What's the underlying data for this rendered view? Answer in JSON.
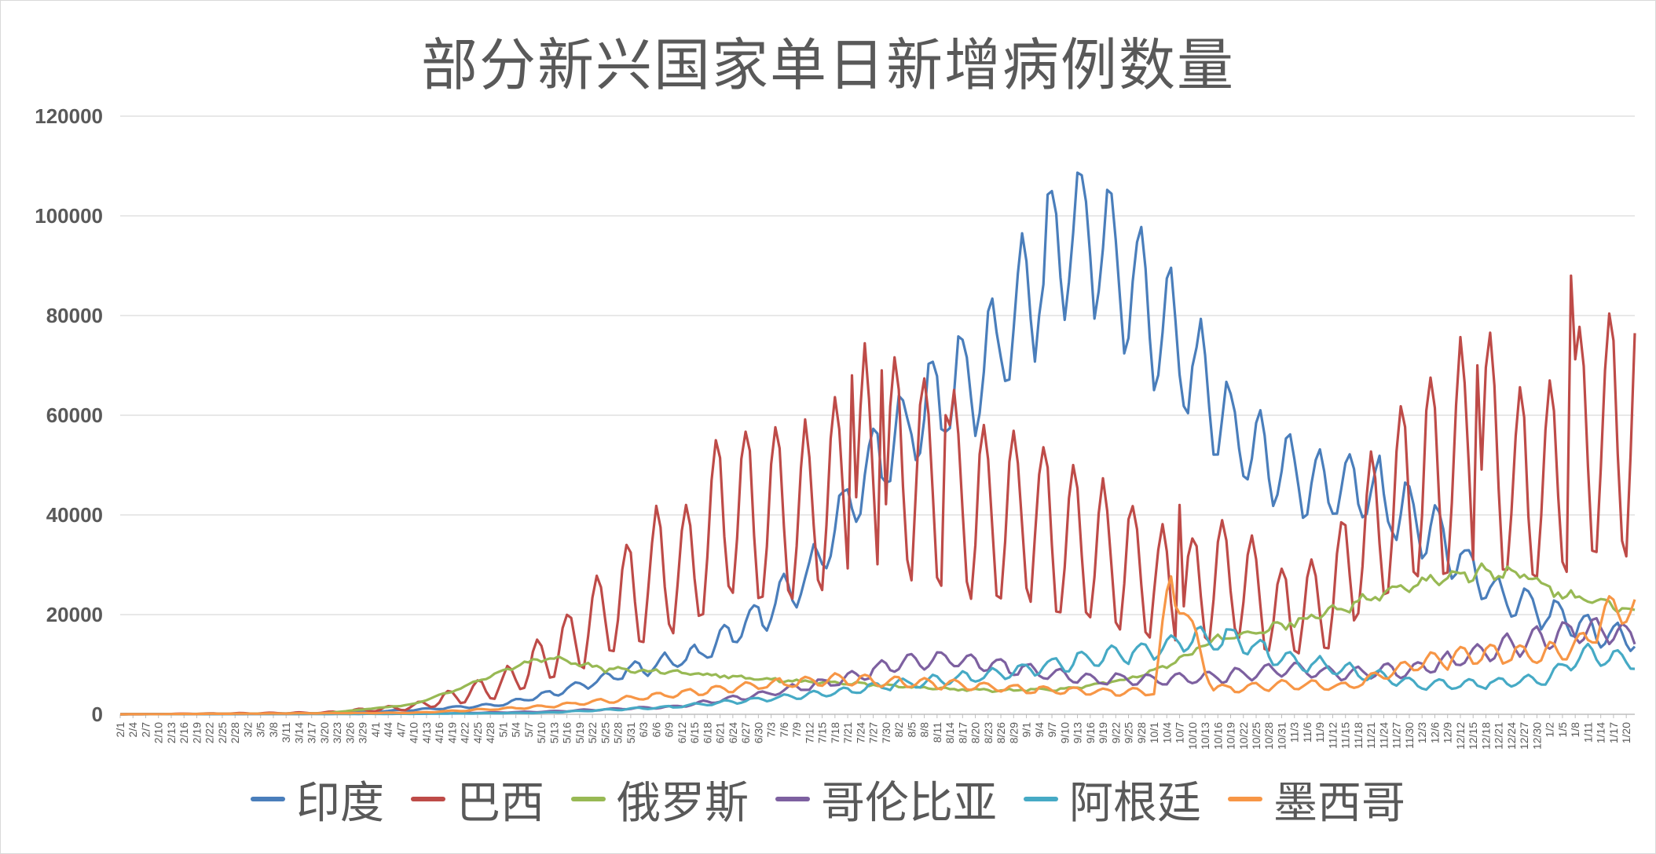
{
  "chart_data": {
    "type": "line",
    "title": "部分新兴国家单日新增病例数量",
    "xlabel": "",
    "ylabel": "",
    "ylim": [
      0,
      120000
    ],
    "y_ticks": [
      0,
      20000,
      40000,
      60000,
      80000,
      100000,
      120000
    ],
    "x_start": "2/1",
    "x_end": "1/22",
    "x_tick_labels": [
      "2/1",
      "2/4",
      "2/7",
      "2/10",
      "2/13",
      "2/16",
      "2/19",
      "2/22",
      "2/25",
      "2/28",
      "3/2",
      "3/5",
      "3/8",
      "3/11",
      "3/14",
      "3/17",
      "3/20",
      "3/23",
      "3/26",
      "3/29",
      "4/1",
      "4/4",
      "4/7",
      "4/10",
      "4/13",
      "4/16",
      "4/19",
      "4/22",
      "4/25",
      "4/28",
      "5/1",
      "5/4",
      "5/7",
      "5/10",
      "5/13",
      "5/16",
      "5/19",
      "5/22",
      "5/25",
      "5/28",
      "5/31",
      "6/3",
      "6/6",
      "6/9",
      "6/12",
      "6/15",
      "6/18",
      "6/21",
      "6/24",
      "6/27",
      "6/30",
      "7/3",
      "7/6",
      "7/9",
      "7/12",
      "7/15",
      "7/18",
      "7/21",
      "7/24",
      "7/27",
      "7/30",
      "8/2",
      "8/5",
      "8/8",
      "8/11",
      "8/14",
      "8/17",
      "8/20",
      "8/23",
      "8/26",
      "8/29",
      "9/1",
      "9/4",
      "9/7",
      "9/10",
      "9/13",
      "9/16",
      "9/19",
      "9/22",
      "9/25",
      "9/28",
      "10/1",
      "10/4",
      "10/7",
      "10/10",
      "10/13",
      "10/16",
      "10/19",
      "10/22",
      "10/25",
      "10/28",
      "10/31",
      "11/3",
      "11/6",
      "11/9",
      "11/12",
      "11/15",
      "11/18",
      "11/21",
      "11/24",
      "11/27",
      "11/30",
      "12/3",
      "12/6",
      "12/9",
      "12/12",
      "12/15",
      "12/18",
      "12/21",
      "12/24",
      "12/27",
      "12/30",
      "1/2",
      "1/5",
      "1/8",
      "1/11",
      "1/14",
      "1/17",
      "1/20"
    ],
    "grid": true,
    "legend_position": "bottom",
    "series": [
      {
        "name": "印度",
        "color": "#4a7ebb",
        "x": [
          "2/1",
          "3/20",
          "4/10",
          "5/1",
          "5/16",
          "6/1",
          "6/16",
          "7/1",
          "7/12",
          "7/26",
          "8/9",
          "8/23",
          "9/5",
          "9/11",
          "9/16",
          "9/26",
          "10/6",
          "10/21",
          "11/5",
          "11/20",
          "12/5",
          "12/20",
          "1/5",
          "1/15",
          "1/22"
        ],
        "values": [
          0,
          200,
          900,
          2000,
          5000,
          9000,
          12000,
          20000,
          28000,
          49000,
          62000,
          70000,
          89000,
          97000,
          96000,
          86000,
          74000,
          55000,
          47000,
          45000,
          37000,
          24000,
          19000,
          16000,
          15000
        ]
      },
      {
        "name": "巴西",
        "color": "#be4b48",
        "x": [
          "2/1",
          "3/20",
          "4/10",
          "5/1",
          "5/16",
          "5/25",
          "6/5",
          "6/15",
          "6/21",
          "7/1",
          "7/10",
          "7/20",
          "7/25",
          "8/1",
          "8/15",
          "8/20",
          "9/1",
          "9/10",
          "9/25",
          "10/5",
          "10/10",
          "10/20",
          "10/30",
          "11/10",
          "11/20",
          "11/30",
          "12/10",
          "12/18",
          "12/25",
          "1/2",
          "1/8",
          "1/15",
          "1/22"
        ],
        "values": [
          0,
          300,
          1500,
          6000,
          14000,
          20000,
          28000,
          30000,
          40000,
          40000,
          40000,
          45000,
          50000,
          50000,
          45000,
          40000,
          40000,
          35000,
          30000,
          25000,
          25000,
          28000,
          20000,
          22000,
          35000,
          45000,
          50000,
          55000,
          45000,
          45000,
          55000,
          55000,
          59000
        ],
        "peaks": {
          "6/20": 55000,
          "7/22": 68000,
          "7/29": 69000,
          "8/13": 60000,
          "10/7": 42000,
          "12/16": 70000,
          "1/7": 88000,
          "1/15": 69000
        }
      },
      {
        "name": "俄罗斯",
        "color": "#98b954",
        "x": [
          "2/1",
          "3/20",
          "4/10",
          "4/20",
          "5/5",
          "5/12",
          "5/25",
          "6/10",
          "6/25",
          "7/10",
          "7/25",
          "8/10",
          "8/25",
          "9/10",
          "9/25",
          "10/5",
          "10/15",
          "10/25",
          "11/5",
          "11/20",
          "12/1",
          "12/10",
          "12/24",
          "1/5",
          "1/15",
          "1/22"
        ],
        "values": [
          0,
          200,
          2000,
          5000,
          10000,
          11500,
          9000,
          8500,
          7500,
          6600,
          6000,
          5200,
          4800,
          5000,
          7000,
          10000,
          15000,
          16500,
          19000,
          23000,
          26000,
          28000,
          29000,
          24000,
          22000,
          21000
        ]
      },
      {
        "name": "哥伦比亚",
        "color": "#7d60a0",
        "x": [
          "2/1",
          "4/10",
          "5/10",
          "6/10",
          "7/1",
          "7/20",
          "8/1",
          "8/15",
          "9/1",
          "9/15",
          "10/1",
          "10/15",
          "11/1",
          "11/15",
          "12/1",
          "12/15",
          "12/24",
          "1/5",
          "1/15",
          "1/22"
        ],
        "values": [
          0,
          100,
          500,
          1500,
          4000,
          7000,
          10000,
          11000,
          9000,
          7000,
          7000,
          7500,
          9000,
          8000,
          9000,
          12000,
          14000,
          16000,
          17000,
          15000
        ]
      },
      {
        "name": "阿根廷",
        "color": "#46aac5",
        "x": [
          "2/1",
          "4/10",
          "5/10",
          "6/10",
          "7/1",
          "7/20",
          "8/1",
          "8/15",
          "9/1",
          "9/15",
          "10/1",
          "10/10",
          "10/20",
          "11/1",
          "11/15",
          "12/1",
          "12/15",
          "1/1",
          "1/10",
          "1/22"
        ],
        "values": [
          0,
          100,
          300,
          1500,
          3000,
          4500,
          6000,
          7000,
          9000,
          11000,
          13000,
          15000,
          15000,
          11000,
          9000,
          6000,
          6000,
          7000,
          12000,
          11000
        ]
      },
      {
        "name": "墨西哥",
        "color": "#f79646",
        "x": [
          "2/1",
          "4/10",
          "5/10",
          "6/10",
          "7/1",
          "7/20",
          "8/1",
          "8/15",
          "9/1",
          "9/15",
          "10/1",
          "10/5",
          "10/15",
          "11/1",
          "11/15",
          "12/1",
          "12/15",
          "1/1",
          "1/10",
          "1/15",
          "1/22"
        ],
        "values": [
          0,
          300,
          1500,
          4000,
          6000,
          7000,
          6500,
          6000,
          5000,
          4500,
          4500,
          28000,
          5000,
          6000,
          5500,
          10000,
          12000,
          12000,
          14000,
          20000,
          22000
        ]
      }
    ]
  }
}
